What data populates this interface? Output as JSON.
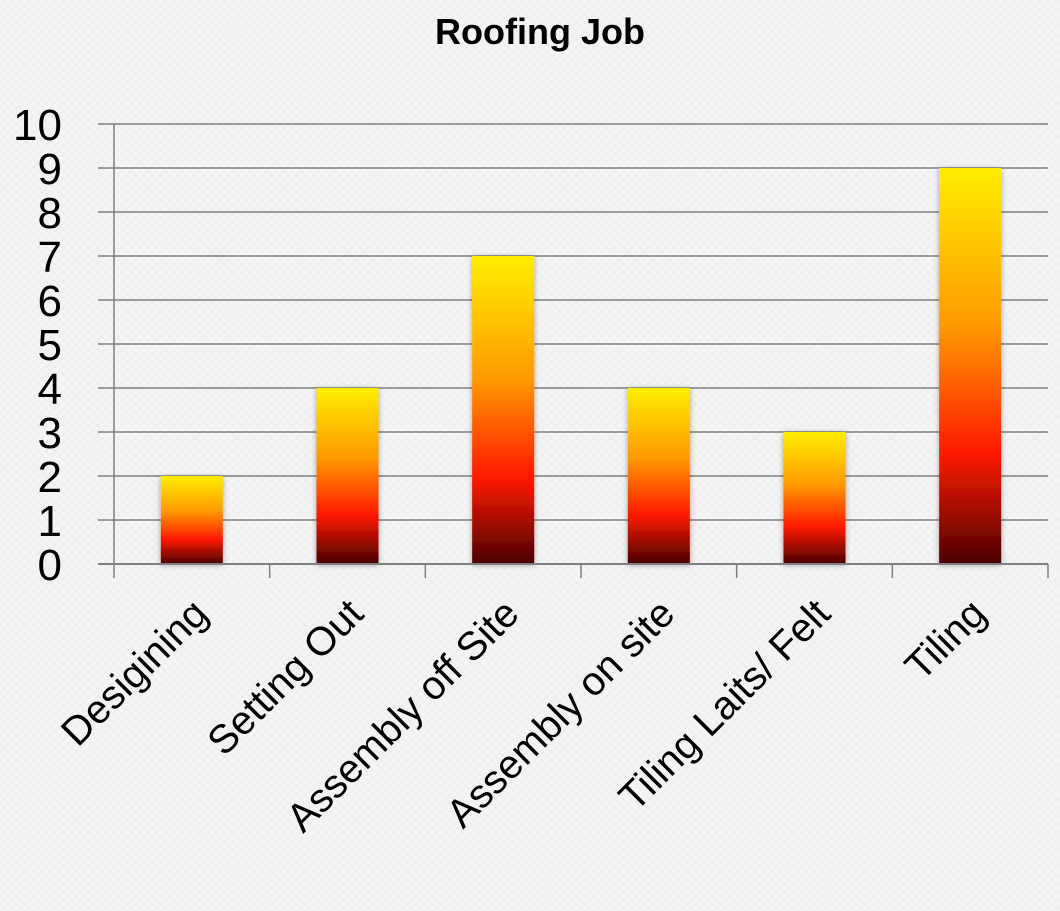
{
  "chart_data": {
    "type": "bar",
    "title": "Roofing Job",
    "categories": [
      "Desigining",
      "Setting Out",
      "Assembly off Site",
      "Assembly on site",
      "Tiling Laits/ Felt",
      "Tiling"
    ],
    "values": [
      2,
      4,
      7,
      4,
      3,
      9
    ],
    "xlabel": "",
    "ylabel": "",
    "ylim": [
      0,
      10
    ],
    "yticks": [
      0,
      1,
      2,
      3,
      4,
      5,
      6,
      7,
      8,
      9,
      10
    ],
    "grid": true,
    "legend": "none",
    "colors": {
      "bar_top": "#ffee00",
      "bar_upper": "#ff9900",
      "bar_middle": "#ff1a00",
      "bar_bottom": "#4a0000",
      "gridline": "#7f7f7f",
      "axis": "#808080",
      "text": "#000000"
    }
  }
}
